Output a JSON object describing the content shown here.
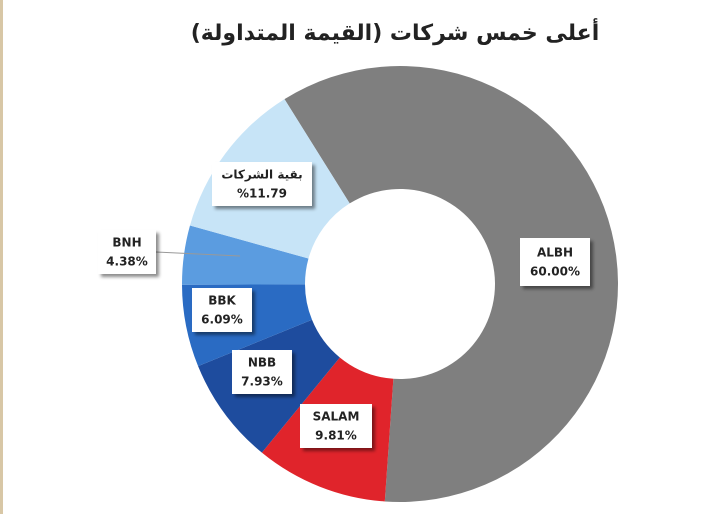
{
  "chart_data": {
    "type": "donut",
    "title": "أعلى خمس شركات (القيمة المتداولة)",
    "categories": [
      "ALBH",
      "SALAM",
      "NBB",
      "BBK",
      "BNH",
      "بقية الشركات"
    ],
    "values": [
      60.0,
      9.81,
      7.93,
      6.09,
      4.38,
      11.79
    ],
    "value_labels": [
      "60.00%",
      "9.81%",
      "7.93%",
      "6.09%",
      "4.38%",
      "%11.79"
    ],
    "colors": [
      "#7f7f7f",
      "#e0242b",
      "#1e4c9e",
      "#2a6bc3",
      "#5b9ce0",
      "#c7e4f7"
    ]
  }
}
